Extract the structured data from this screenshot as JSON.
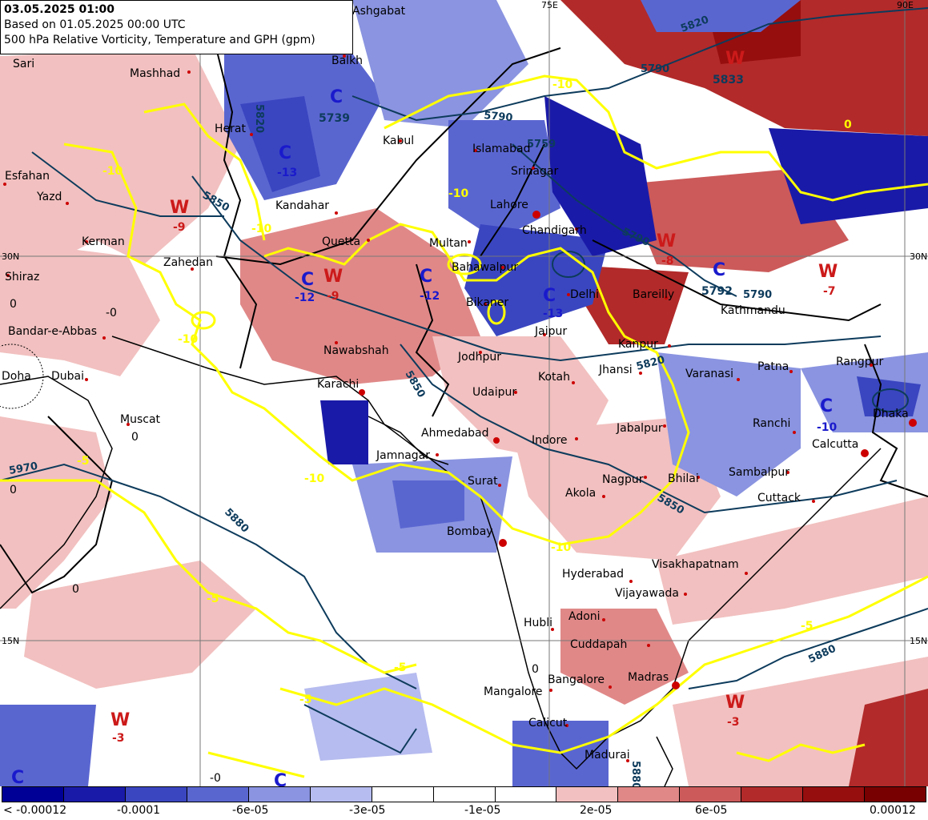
{
  "header": {
    "valid_time": "03.05.2025 01:00",
    "based_on": "Based on 01.05.2025 00:00 UTC",
    "product": "500 hPa Relative Vorticity, Temperature and GPH (gpm)"
  },
  "colors": {
    "neg_strong": "#0a0a8c",
    "neg_mid": "#4a55c8",
    "neg_light": "#aab0ea",
    "pos_light": "#f0b0b0",
    "pos_mid": "#d05a5a",
    "pos_strong": "#8c0a0a",
    "temp_contour": "#ffff00",
    "gph_contour": "#0d3b5c",
    "city_dot": "#cc0000",
    "cold_marker": "#1a1acc",
    "warm_marker": "#cc1a1a"
  },
  "colorbar": {
    "colors": [
      "#000096",
      "#1a1aa8",
      "#3a46c0",
      "#5a66d0",
      "#8a94e0",
      "#b6bcef",
      "#ffffff",
      "#ffffff",
      "#ffffff",
      "#f2c0c0",
      "#e08888",
      "#cc5a5a",
      "#b22a2a",
      "#960e0e",
      "#780000"
    ],
    "labels": [
      "< -0.00012",
      "-0.0001",
      "-6e-05",
      "-3e-05",
      "-1e-05",
      "2e-05",
      "6e-05",
      "0.00012"
    ]
  },
  "gridlines": {
    "lat_labels": [
      "30N",
      "15N"
    ],
    "lon_labels": [
      "75E",
      "90E"
    ]
  },
  "cities": [
    "Ashgabat",
    "Mashhad",
    "Herat",
    "Balkh",
    "Sari",
    "Esfahan",
    "Yazd",
    "Kerman",
    "Zahedan",
    "Shiraz",
    "Bandar-e-Abbas",
    "Doha",
    "Dubai",
    "Muscat",
    "Kandahar",
    "Quetta",
    "Kabul",
    "Islamabad",
    "Srinagar",
    "Lahore",
    "Chandigarh",
    "Multan",
    "Bahawalpur",
    "Bikaner",
    "Delhi",
    "Bareilly",
    "Kathmandu",
    "Nawabshah",
    "Karachi",
    "Jodhpur",
    "Jaipur",
    "Kanpur",
    "Jhansi",
    "Varanasi",
    "Patna",
    "Rangpur",
    "Udaipur",
    "Kotah",
    "Ahmedabad",
    "Indore",
    "Jabalpur",
    "Ranchi",
    "Dhaka",
    "Calcutta",
    "Jamnagar",
    "Surat",
    "Akola",
    "Nagpur",
    "Bhilai",
    "Sambalpur",
    "Cuttack",
    "Bombay",
    "Hyderabad",
    "Visakhapatnam",
    "Vijayawada",
    "Adoni",
    "Hubli",
    "Cuddapah",
    "Bangalore",
    "Madras",
    "Mangalore",
    "Calicut",
    "Madurai"
  ],
  "pressure_systems": [
    {
      "type": "C",
      "value": "5739"
    },
    {
      "type": "C",
      "value": "-13"
    },
    {
      "type": "W",
      "value": "-9"
    },
    {
      "type": "C",
      "value": "-12"
    },
    {
      "type": "W",
      "value": "-9"
    },
    {
      "type": "C",
      "value": "-12"
    },
    {
      "type": "C",
      "value": "-13"
    },
    {
      "type": "W",
      "value": "5833"
    },
    {
      "type": "W",
      "value": "-8"
    },
    {
      "type": "C",
      "value": "5792"
    },
    {
      "type": "W",
      "value": "-7"
    },
    {
      "type": "C",
      "value": "-10"
    },
    {
      "type": "W",
      "value": "-3"
    },
    {
      "type": "W",
      "value": "-3"
    },
    {
      "type": "C",
      "value": ""
    },
    {
      "type": "C",
      "value": ""
    }
  ],
  "temp_labels": [
    "-10",
    "-10",
    "-10",
    "-10",
    "-10",
    "-10",
    "-10",
    "-5",
    "-5",
    "-5",
    "-5",
    "-5",
    "0",
    "-0",
    "0",
    "0",
    "0",
    "0",
    "0",
    "-0"
  ],
  "gph_labels": [
    "5820",
    "5820",
    "5850",
    "5850",
    "5880",
    "5790",
    "5790",
    "5790",
    "5820",
    "5850",
    "5880",
    "5880",
    "5970",
    "5759",
    "5790"
  ]
}
